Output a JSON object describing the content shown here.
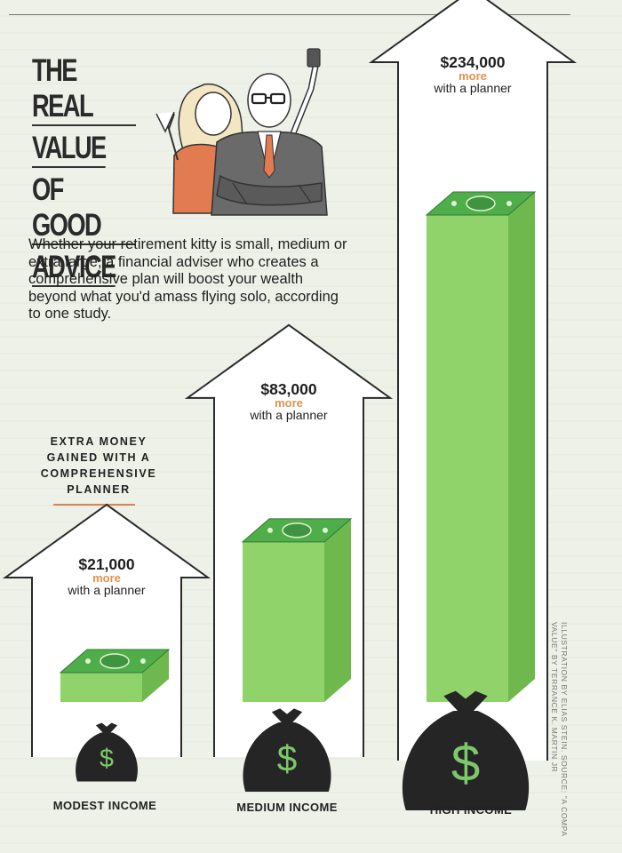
{
  "header": {
    "title_lines": [
      "THE REAL",
      "VALUE",
      "OF GOOD",
      "ADVICE"
    ],
    "intro": "Whether your retirement kitty is small, medium or extra large, a financial adviser who creates a comprehensive plan will boost your wealth beyond what you'd amass flying solo, according to one study."
  },
  "chart_label": [
    "EXTRA MONEY",
    "GAINED WITH A",
    "COMPREHENSIVE",
    "PLANNER"
  ],
  "colors": {
    "money_front": "#8fd36a",
    "money_side": "#6fb84e",
    "money_top": "#4fae4a",
    "bag": "#252525",
    "bag_symbol": "#7cc86a",
    "more_text": "#e0934f",
    "house_stroke": "#2a2a2a",
    "house_fill": "#ffffff"
  },
  "chart_data": {
    "type": "bar",
    "categories": [
      "MODEST INCOME",
      "MEDIUM INCOME",
      "HIGH INCOME"
    ],
    "values": [
      21000,
      83000,
      234000
    ],
    "value_labels": [
      "$21,000",
      "$83,000",
      "$234,000"
    ],
    "more_text": "more",
    "suffix_text": "with a planner",
    "bag_symbol": "$",
    "title": "",
    "xlabel": "",
    "ylabel": ""
  },
  "credit": [
    "ILLUSTRATION BY ELIAS STEIN. SOURCE: \"A COMPA",
    "VALUE\" BY TERRANCE K. MARTIN JR"
  ]
}
